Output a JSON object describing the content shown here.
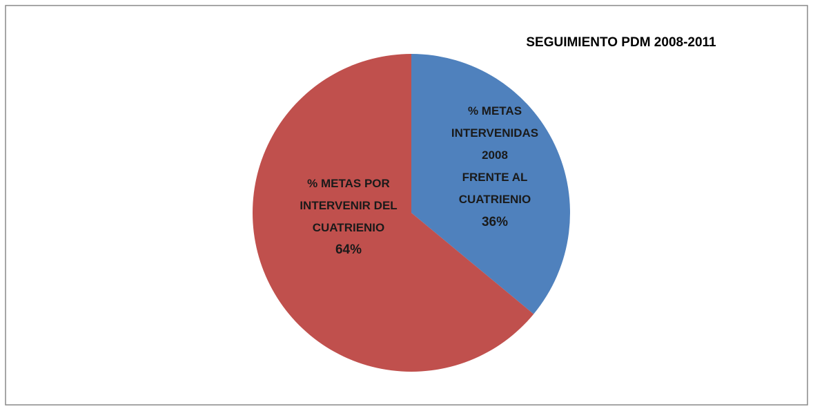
{
  "chart_data": {
    "type": "pie",
    "title": "SEGUIMIENTO PDM  2008-2011",
    "categories": [
      "% METAS\nINTERVENIDAS\n2008\nFRENTE AL\nCUATRIENIO",
      "% METAS POR\nINTERVENIR DEL\nCUATRIENIO"
    ],
    "values": [
      36,
      64
    ],
    "value_labels": [
      "36%",
      "64%"
    ],
    "colors": [
      "#4f81bd",
      "#c0504d"
    ]
  }
}
